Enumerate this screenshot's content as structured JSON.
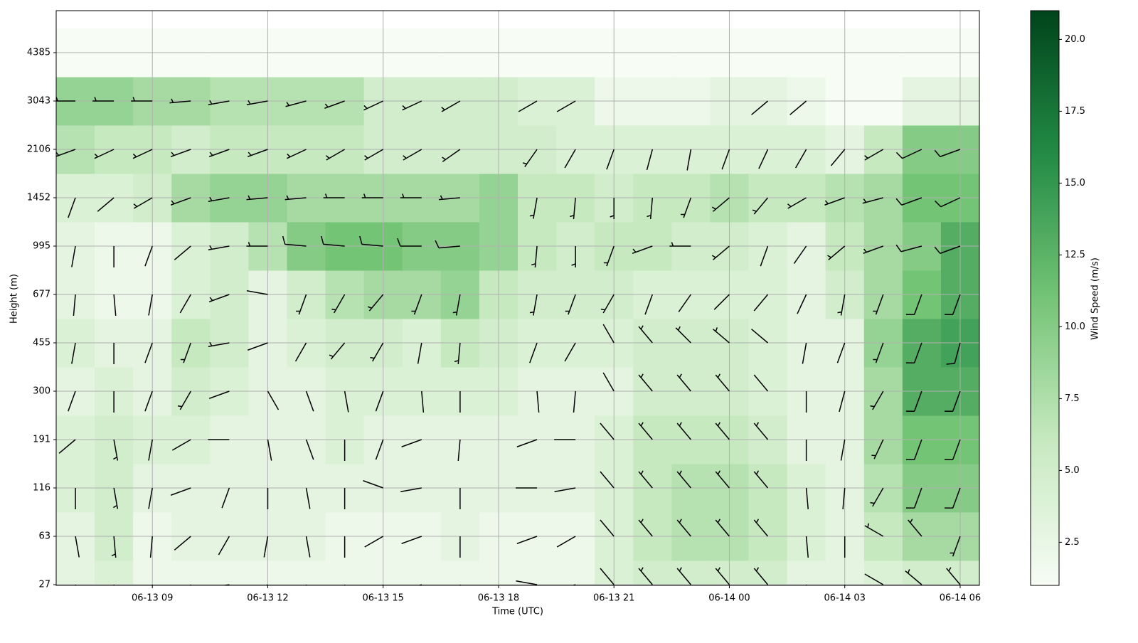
{
  "chart_data": {
    "type": "wind-profile",
    "x_label": "Time (UTC)",
    "y_label": "Height (m)",
    "colorbar_label": "Wind Speed (m/s)",
    "x": [
      "06-13 07",
      "06-13 08",
      "06-13 09",
      "06-13 10",
      "06-13 11",
      "06-13 12",
      "06-13 13",
      "06-13 14",
      "06-13 15",
      "06-13 16",
      "06-13 17",
      "06-13 18",
      "06-13 19",
      "06-13 20",
      "06-13 21",
      "06-13 22",
      "06-13 23",
      "06-14 00",
      "06-14 01",
      "06-14 02",
      "06-14 03",
      "06-14 04",
      "06-14 05",
      "06-14 06"
    ],
    "xticks": [
      "06-13 09",
      "06-13 12",
      "06-13 15",
      "06-13 18",
      "06-13 21",
      "06-14 00",
      "06-14 03",
      "06-14 06"
    ],
    "yticks": [
      27,
      63,
      116,
      191,
      300,
      455,
      677,
      995,
      1452,
      2106,
      3043,
      4385
    ],
    "speed": [
      [
        3,
        4,
        2,
        2,
        2,
        2,
        2,
        2,
        2,
        2,
        2,
        2,
        2,
        2,
        4,
        5,
        5,
        5,
        5,
        3,
        3,
        4,
        5,
        5
      ],
      [
        3,
        5,
        2,
        3,
        3,
        3,
        3,
        2,
        2,
        2,
        3,
        2,
        2,
        2,
        4,
        6,
        7,
        7,
        6,
        4,
        3,
        6,
        8,
        8
      ],
      [
        4,
        5,
        3,
        3,
        3,
        3,
        3,
        3,
        3,
        3,
        3,
        3,
        3,
        3,
        4,
        6,
        7,
        7,
        6,
        4,
        3,
        7,
        10,
        10
      ],
      [
        4,
        5,
        4,
        4,
        3,
        3,
        3,
        4,
        3,
        3,
        3,
        3,
        3,
        3,
        4,
        6,
        6,
        6,
        5,
        3,
        3,
        8,
        11,
        11
      ],
      [
        3,
        4,
        3,
        5,
        4,
        3,
        3,
        4,
        4,
        4,
        4,
        4,
        3,
        3,
        3,
        5,
        5,
        5,
        4,
        3,
        3,
        8,
        13,
        13
      ],
      [
        4,
        3,
        3,
        6,
        5,
        3,
        4,
        5,
        5,
        4,
        6,
        5,
        4,
        4,
        4,
        5,
        5,
        5,
        4,
        3,
        3,
        9,
        13,
        14
      ],
      [
        3,
        2,
        2,
        4,
        5,
        3,
        5,
        7,
        8,
        8,
        9,
        6,
        5,
        5,
        5,
        4,
        4,
        4,
        4,
        3,
        5,
        8,
        11,
        13
      ],
      [
        3,
        2,
        2,
        4,
        5,
        7,
        10,
        11,
        11,
        10,
        10,
        9,
        6,
        5,
        6,
        6,
        5,
        5,
        4,
        3,
        6,
        8,
        10,
        13
      ],
      [
        4,
        4,
        5,
        8,
        9,
        9,
        8,
        8,
        8,
        8,
        8,
        9,
        6,
        6,
        5,
        6,
        6,
        7,
        6,
        6,
        7,
        8,
        11,
        11
      ],
      [
        7,
        6,
        6,
        5,
        6,
        6,
        6,
        6,
        5,
        5,
        5,
        5,
        5,
        4,
        4,
        4,
        4,
        4,
        4,
        4,
        3,
        6,
        10,
        10
      ],
      [
        9,
        9,
        8,
        8,
        7,
        7,
        7,
        7,
        5,
        5,
        5,
        5,
        4,
        4,
        2,
        2,
        2,
        3,
        3,
        2,
        1,
        1,
        3,
        3
      ],
      [
        1,
        1,
        1,
        1,
        1,
        1,
        1,
        1,
        1,
        1,
        1,
        1,
        1,
        1,
        1,
        1,
        1,
        1,
        1,
        1,
        1,
        1,
        1,
        1
      ]
    ],
    "direction": [
      [
        170,
        175,
        180,
        200,
        260,
        230,
        180,
        190,
        200,
        250,
        180,
        null,
        280,
        250,
        320,
        320,
        320,
        320,
        320,
        170,
        180,
        300,
        310,
        320
      ],
      [
        170,
        175,
        185,
        230,
        210,
        190,
        170,
        180,
        240,
        250,
        180,
        null,
        250,
        240,
        320,
        320,
        320,
        320,
        320,
        175,
        180,
        300,
        320,
        200
      ],
      [
        180,
        170,
        190,
        250,
        200,
        180,
        170,
        180,
        290,
        260,
        180,
        null,
        270,
        260,
        320,
        320,
        320,
        320,
        320,
        175,
        185,
        210,
        200,
        200
      ],
      [
        230,
        170,
        190,
        240,
        270,
        170,
        160,
        180,
        200,
        250,
        185,
        null,
        250,
        270,
        320,
        320,
        320,
        320,
        320,
        180,
        190,
        205,
        200,
        200
      ],
      [
        200,
        180,
        200,
        210,
        250,
        150,
        160,
        170,
        200,
        175,
        180,
        null,
        175,
        185,
        330,
        320,
        320,
        320,
        320,
        180,
        195,
        210,
        200,
        200
      ],
      [
        190,
        180,
        200,
        200,
        260,
        250,
        210,
        220,
        210,
        190,
        185,
        null,
        200,
        210,
        330,
        320,
        315,
        310,
        310,
        190,
        200,
        200,
        200,
        195
      ],
      [
        185,
        175,
        190,
        210,
        250,
        280,
        200,
        210,
        220,
        200,
        190,
        null,
        190,
        200,
        210,
        200,
        215,
        225,
        220,
        205,
        190,
        200,
        200,
        200
      ],
      [
        190,
        180,
        200,
        230,
        260,
        270,
        275,
        275,
        275,
        270,
        265,
        null,
        185,
        180,
        200,
        250,
        270,
        230,
        200,
        215,
        230,
        250,
        255,
        250
      ],
      [
        200,
        230,
        240,
        250,
        260,
        265,
        265,
        270,
        270,
        270,
        265,
        null,
        190,
        185,
        180,
        185,
        200,
        230,
        220,
        240,
        250,
        255,
        250,
        245
      ],
      [
        250,
        245,
        245,
        250,
        250,
        250,
        245,
        240,
        240,
        240,
        235,
        null,
        215,
        210,
        200,
        195,
        190,
        200,
        205,
        210,
        220,
        240,
        245,
        250
      ],
      [
        270,
        270,
        270,
        265,
        260,
        260,
        255,
        250,
        245,
        245,
        240,
        null,
        240,
        240,
        null,
        null,
        null,
        null,
        230,
        230,
        null,
        null,
        null,
        null
      ],
      [
        null,
        null,
        null,
        null,
        null,
        null,
        null,
        null,
        null,
        null,
        null,
        null,
        null,
        null,
        null,
        null,
        null,
        null,
        null,
        null,
        null,
        null,
        null,
        null
      ]
    ],
    "clim": [
      1,
      21
    ],
    "cticks": [
      2.5,
      {
        "value": 5,
        "label": "5.0"
      },
      7.5,
      {
        "value": 10,
        "label": "10.0"
      },
      12.5,
      {
        "value": 15,
        "label": "15.0"
      },
      17.5,
      {
        "value": 20,
        "label": "20.0"
      }
    ],
    "colormap": [
      "#f7fcf5",
      "#c7e9c0",
      "#74c476",
      "#238b45",
      "#00441b"
    ],
    "grid": true
  }
}
